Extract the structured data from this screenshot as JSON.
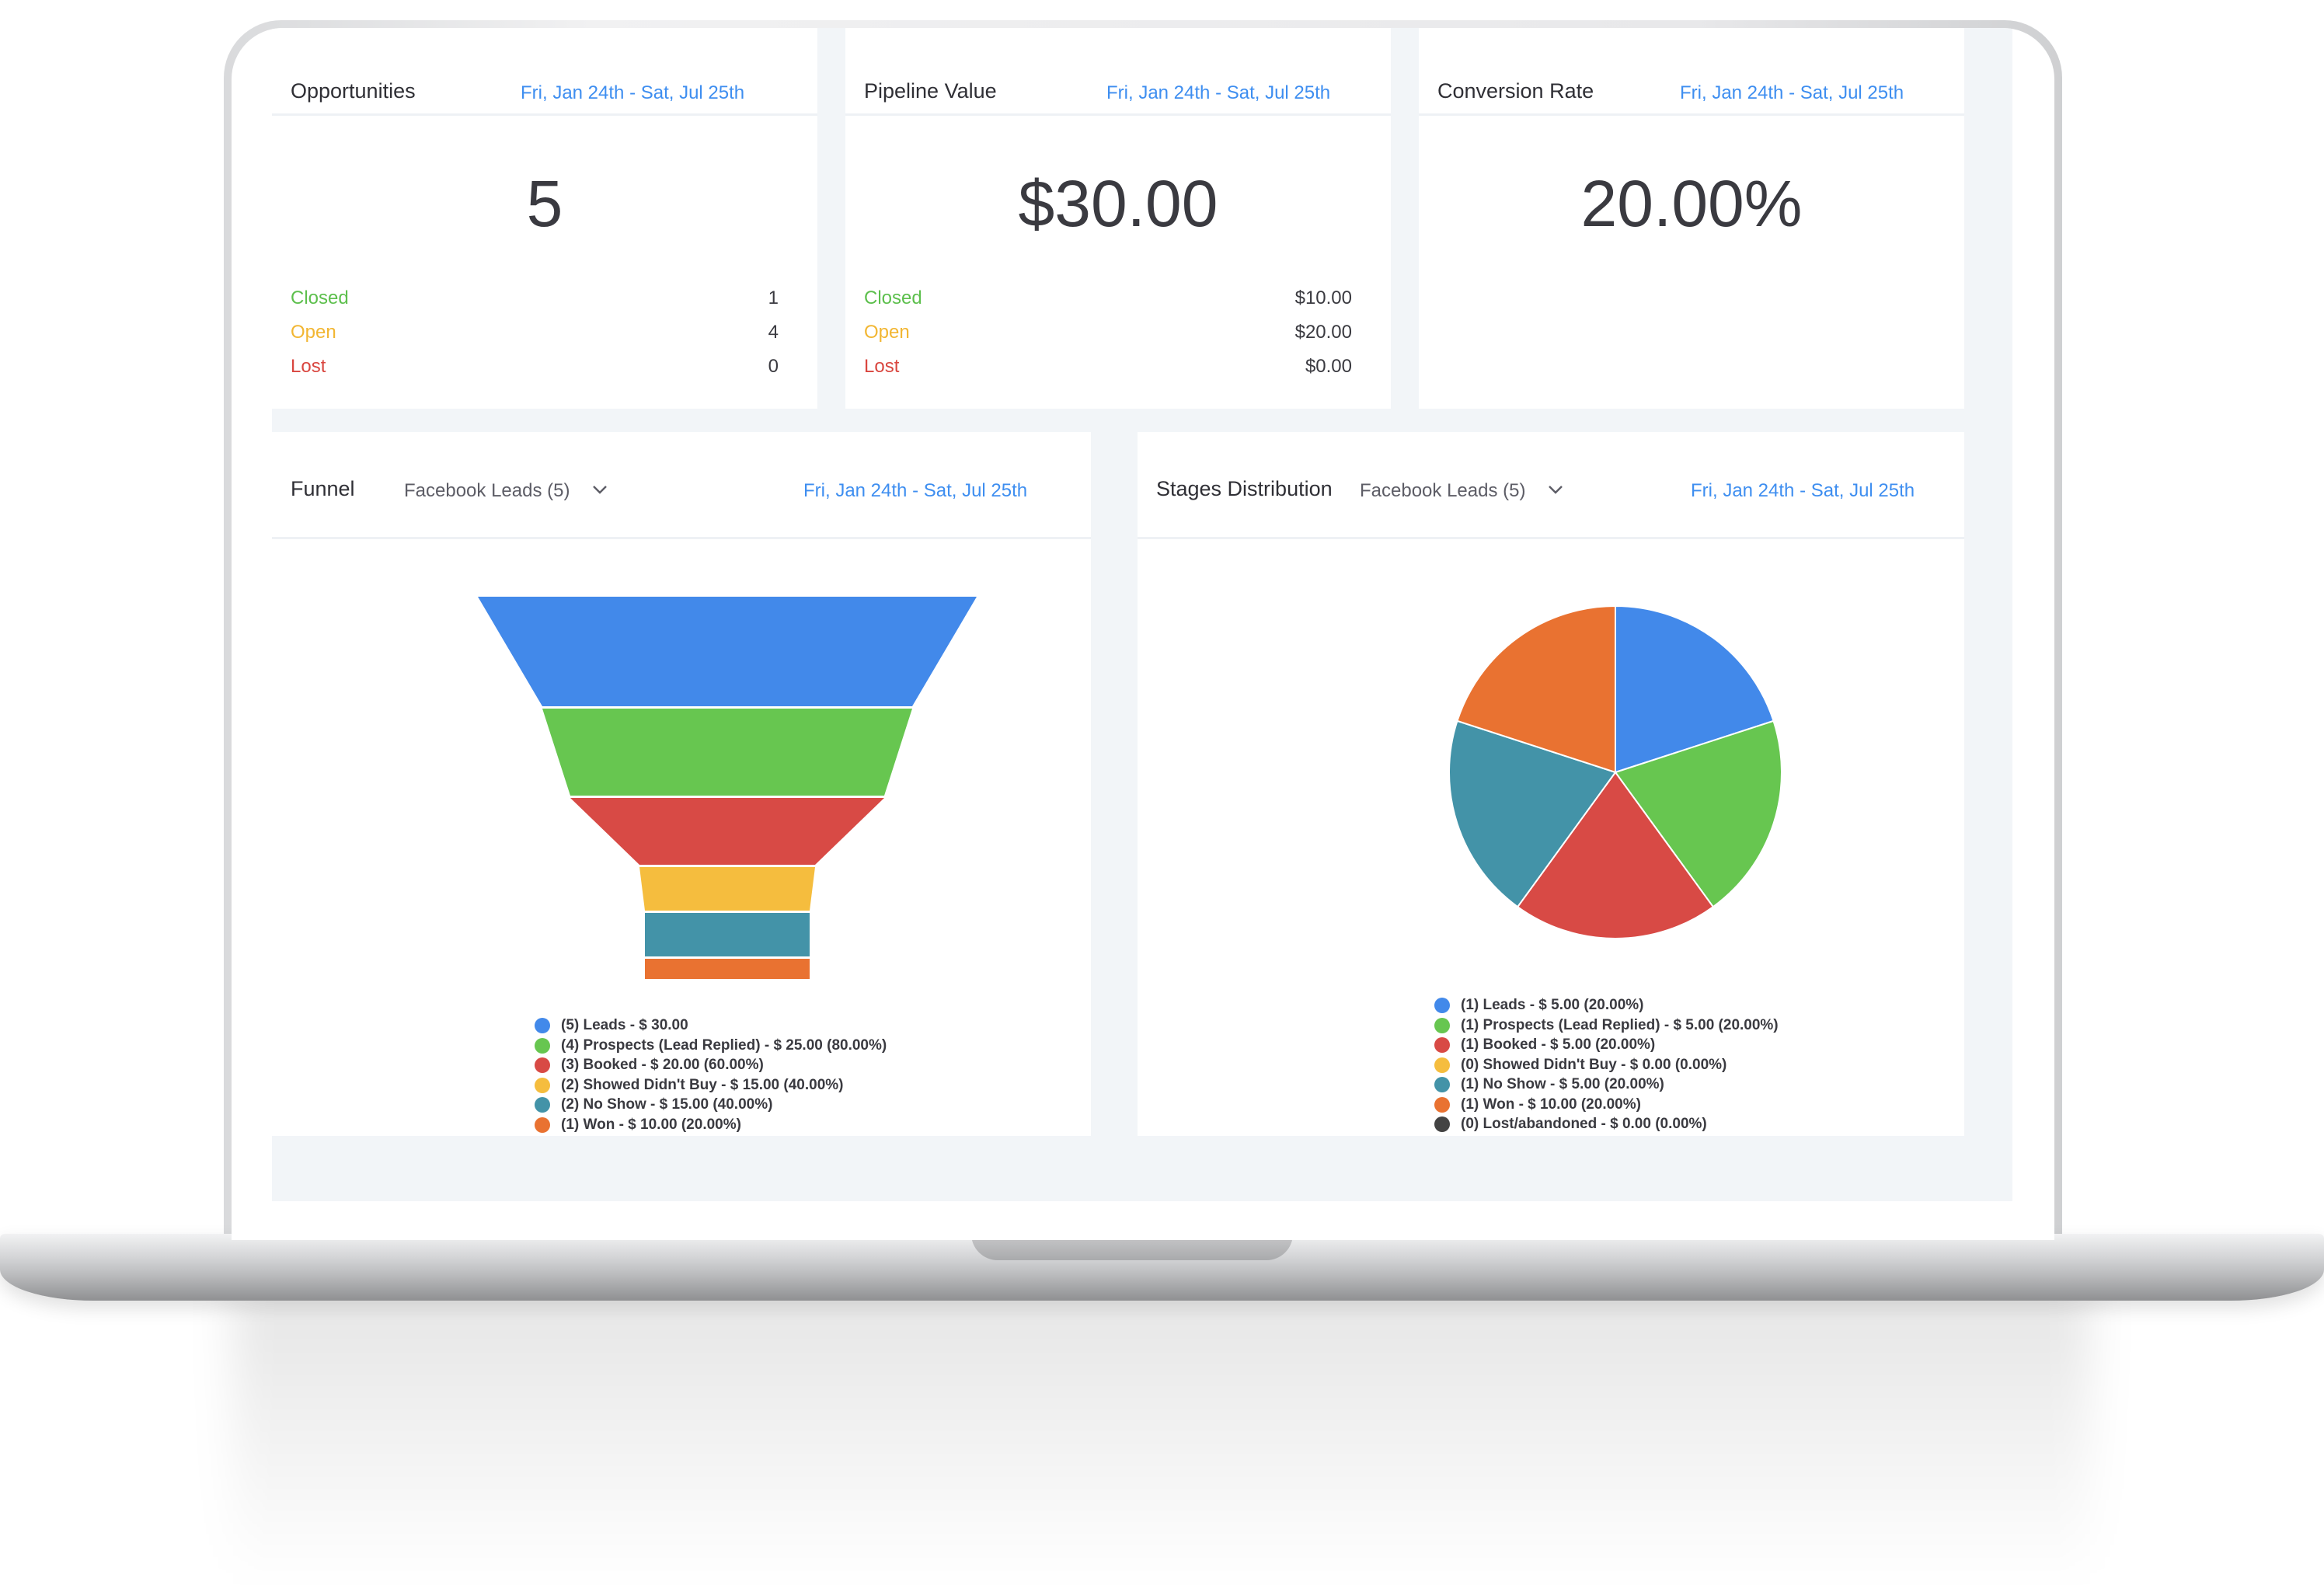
{
  "cards": {
    "opportunities": {
      "title": "Opportunities",
      "date_range": "Fri, Jan 24th - Sat, Jul 25th",
      "value": "5",
      "rows": [
        {
          "label": "Closed",
          "value": "1"
        },
        {
          "label": "Open",
          "value": "4"
        },
        {
          "label": "Lost",
          "value": "0"
        }
      ]
    },
    "pipeline": {
      "title": "Pipeline Value",
      "date_range": "Fri, Jan 24th - Sat, Jul 25th",
      "value": "$30.00",
      "rows": [
        {
          "label": "Closed",
          "value": "$10.00"
        },
        {
          "label": "Open",
          "value": "$20.00"
        },
        {
          "label": "Lost",
          "value": "$0.00"
        }
      ]
    },
    "conversion": {
      "title": "Conversion Rate",
      "date_range": "Fri, Jan 24th - Sat, Jul 25th",
      "value": "20.00%"
    }
  },
  "status_colors": {
    "closed": "#5cbf4c",
    "open": "#f2b632",
    "lost": "#d9463f"
  },
  "funnel_card": {
    "title": "Funnel",
    "dropdown": "Facebook Leads (5)",
    "date_range": "Fri, Jan 24th - Sat, Jul 25th"
  },
  "stages_card": {
    "title": "Stages Distribution",
    "dropdown": "Facebook Leads (5)",
    "date_range": "Fri, Jan 24th - Sat, Jul 25th"
  },
  "icons": {
    "dropdown": "chevron-down-icon"
  },
  "chart_data": [
    {
      "type": "funnel",
      "stages": [
        "Leads",
        "Prospects (Lead Replied)",
        "Booked",
        "Showed Didn't Buy",
        "No Show",
        "Won"
      ],
      "counts": [
        5,
        4,
        3,
        2,
        2,
        1
      ],
      "colors": [
        "#4289ea",
        "#67c650",
        "#d84a45",
        "#f5bd3e",
        "#4393a8",
        "#e97231"
      ],
      "legend": [
        "(5) Leads - $ 30.00",
        "(4) Prospects (Lead Replied) - $ 25.00 (80.00%)",
        "(3) Booked - $ 20.00 (60.00%)",
        "(2) Showed Didn't Buy - $ 15.00 (40.00%)",
        "(2) No Show - $ 15.00 (40.00%)",
        "(1) Won - $ 10.00 (20.00%)"
      ]
    },
    {
      "type": "pie",
      "labels": [
        "Leads",
        "Prospects (Lead Replied)",
        "Booked",
        "Showed Didn't Buy",
        "No Show",
        "Won",
        "Lost/abandoned"
      ],
      "values": [
        1,
        1,
        1,
        0,
        1,
        1,
        0
      ],
      "colors": [
        "#4289ea",
        "#67c650",
        "#d84a45",
        "#f5bd3e",
        "#4393a8",
        "#e97231",
        "#434343"
      ],
      "legend": [
        "(1) Leads - $ 5.00 (20.00%)",
        "(1) Prospects (Lead Replied) - $ 5.00 (20.00%)",
        "(1) Booked - $ 5.00 (20.00%)",
        "(0) Showed Didn't Buy - $ 0.00 (0.00%)",
        "(1) No Show - $ 5.00 (20.00%)",
        "(1) Won - $ 10.00 (20.00%)",
        "(0) Lost/abandoned - $ 0.00 (0.00%)"
      ]
    }
  ]
}
